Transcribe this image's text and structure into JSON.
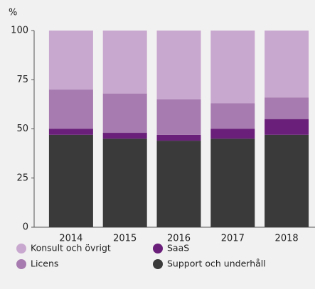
{
  "chart_data": {
    "type": "stacked_bar",
    "y_axis_label": "%",
    "categories": [
      "2014",
      "2015",
      "2016",
      "2017",
      "2018"
    ],
    "series": [
      {
        "name": "Support och underhåll",
        "color": "#3a3a3a",
        "values": [
          47,
          45,
          44,
          45,
          47
        ]
      },
      {
        "name": "SaaS",
        "color": "#6a1f7a",
        "values": [
          3,
          3,
          3,
          5,
          8
        ]
      },
      {
        "name": "Licens",
        "color": "#a77bb0",
        "values": [
          20,
          20,
          18,
          13,
          11
        ]
      },
      {
        "name": "Konsult och övrigt",
        "color": "#c9a8cf",
        "values": [
          30,
          32,
          35,
          37,
          34
        ]
      }
    ],
    "ylim": [
      0,
      100
    ],
    "yticks": [
      0,
      25,
      50,
      75,
      100
    ]
  }
}
